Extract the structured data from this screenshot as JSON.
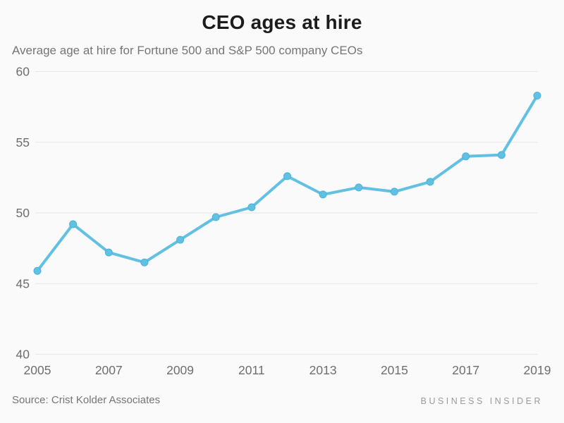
{
  "page": {
    "title": "CEO ages at hire",
    "subtitle": "Average age at hire for Fortune 500 and S&P 500 company CEOs",
    "source": "Source: Crist Kolder Associates",
    "brand": "BUSINESS INSIDER"
  },
  "colors": {
    "background": "#fafafa",
    "line": "#62c0e3",
    "dot_fill": "#62c0e3",
    "dot_stroke": "#48b4da",
    "grid": "#e7e7e7",
    "title_text": "#1c1c1c",
    "muted_text": "#6e6e6e",
    "brand_text": "#9b9b9b"
  },
  "chart_data": {
    "type": "line",
    "title": "CEO ages at hire",
    "subtitle": "Average age at hire for Fortune 500 and S&P 500 company CEOs",
    "x": [
      2005,
      2006,
      2007,
      2008,
      2009,
      2010,
      2011,
      2012,
      2013,
      2014,
      2015,
      2016,
      2017,
      2018,
      2019
    ],
    "values": [
      45.9,
      49.2,
      47.2,
      46.5,
      48.1,
      49.7,
      50.4,
      52.6,
      51.3,
      51.8,
      51.5,
      52.2,
      54.0,
      54.1,
      58.3
    ],
    "xlabel": "",
    "ylabel": "",
    "ylim": [
      40,
      60
    ],
    "yticks": [
      40,
      45,
      50,
      55,
      60
    ],
    "xticks": [
      2005,
      2007,
      2009,
      2011,
      2013,
      2015,
      2017,
      2019
    ],
    "grid": "horizontal",
    "legend": "none",
    "source": "Crist Kolder Associates"
  }
}
